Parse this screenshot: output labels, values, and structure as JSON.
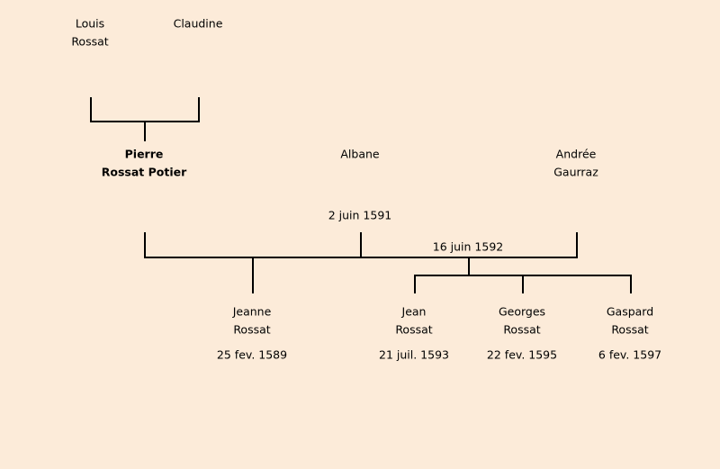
{
  "parents": [
    {
      "lines": [
        "Louis",
        "Rossat"
      ]
    },
    {
      "lines": [
        "Claudine"
      ]
    }
  ],
  "spouses": [
    {
      "lines": [
        "Pierre",
        "Rossat Potier"
      ]
    },
    {
      "lines": [
        "Albane"
      ]
    },
    {
      "lines": [
        "Andrée",
        "Gaurraz"
      ]
    }
  ],
  "marriages": [
    "2 juin 1591",
    "16 juin 1592"
  ],
  "children": [
    {
      "lines": [
        "Jeanne",
        "Rossat"
      ],
      "born": "25 fev. 1589"
    },
    {
      "lines": [
        "Jean",
        "Rossat"
      ],
      "born": "21 juil. 1593"
    },
    {
      "lines": [
        "Georges",
        "Rossat"
      ],
      "born": "22 fev. 1595"
    },
    {
      "lines": [
        "Gaspard",
        "Rossat"
      ],
      "born": "6 fev. 1597"
    }
  ]
}
